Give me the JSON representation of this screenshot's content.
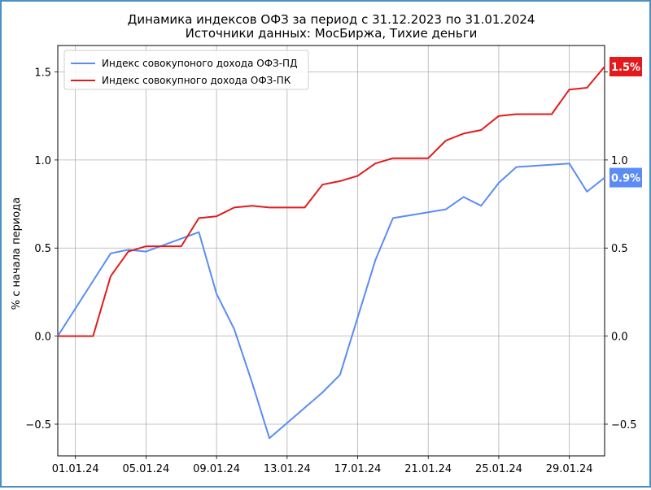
{
  "chart_data": {
    "type": "line",
    "title": "Динамика индексов ОФЗ за период с 31.12.2023 по 31.01.2024",
    "subtitle": "Источники данных: МосБиржа, Тихие деньги",
    "xlabel": "",
    "ylabel": "% с начала периода",
    "ylim": [
      -0.68,
      1.65
    ],
    "xlim": [
      "2023-12-31",
      "2024-01-31"
    ],
    "yticks": [
      -0.5,
      0.0,
      0.5,
      1.0,
      1.5
    ],
    "ytick_labels": [
      "−0.5",
      "0.0",
      "0.5",
      "1.0",
      "1.5"
    ],
    "xticks": [
      "2024-01-01",
      "2024-01-05",
      "2024-01-09",
      "2024-01-13",
      "2024-01-17",
      "2024-01-21",
      "2024-01-25",
      "2024-01-29"
    ],
    "xtick_labels": [
      "01.01.24",
      "05.01.24",
      "09.01.24",
      "13.01.24",
      "17.01.24",
      "21.01.24",
      "25.01.24",
      "29.01.24"
    ],
    "grid": true,
    "legend_position": "top-left",
    "right_axis_mirror": true,
    "series": [
      {
        "name": "Индекс совокупоного дохода ОФЗ-ПД",
        "color": "#5b8cf5",
        "end_label": "0.9%",
        "x": [
          "2023-12-31",
          "2024-01-03",
          "2024-01-04",
          "2024-01-05",
          "2024-01-08",
          "2024-01-09",
          "2024-01-10",
          "2024-01-11",
          "2024-01-12",
          "2024-01-15",
          "2024-01-16",
          "2024-01-18",
          "2024-01-19",
          "2024-01-22",
          "2024-01-23",
          "2024-01-24",
          "2024-01-25",
          "2024-01-26",
          "2024-01-29",
          "2024-01-30",
          "2024-01-31"
        ],
        "y": [
          0.0,
          0.47,
          0.49,
          0.48,
          0.59,
          0.24,
          0.04,
          -0.26,
          -0.58,
          -0.32,
          -0.22,
          0.43,
          0.67,
          0.72,
          0.79,
          0.74,
          0.87,
          0.96,
          0.98,
          0.82,
          0.9
        ]
      },
      {
        "name": "Индекс совокупного дохода ОФЗ-ПК",
        "color": "#e31a1c",
        "end_label": "1.5%",
        "x": [
          "2023-12-31",
          "2024-01-01",
          "2024-01-02",
          "2024-01-03",
          "2024-01-04",
          "2024-01-05",
          "2024-01-06",
          "2024-01-07",
          "2024-01-08",
          "2024-01-09",
          "2024-01-10",
          "2024-01-11",
          "2024-01-12",
          "2024-01-13",
          "2024-01-14",
          "2024-01-15",
          "2024-01-16",
          "2024-01-17",
          "2024-01-18",
          "2024-01-19",
          "2024-01-20",
          "2024-01-21",
          "2024-01-22",
          "2024-01-23",
          "2024-01-24",
          "2024-01-25",
          "2024-01-26",
          "2024-01-27",
          "2024-01-28",
          "2024-01-29",
          "2024-01-30",
          "2024-01-31"
        ],
        "y": [
          0.0,
          0.0,
          0.0,
          0.34,
          0.48,
          0.51,
          0.51,
          0.51,
          0.67,
          0.68,
          0.73,
          0.74,
          0.73,
          0.73,
          0.73,
          0.86,
          0.88,
          0.91,
          0.98,
          1.01,
          1.01,
          1.01,
          1.11,
          1.15,
          1.17,
          1.25,
          1.26,
          1.26,
          1.26,
          1.4,
          1.41,
          1.53
        ]
      }
    ]
  }
}
